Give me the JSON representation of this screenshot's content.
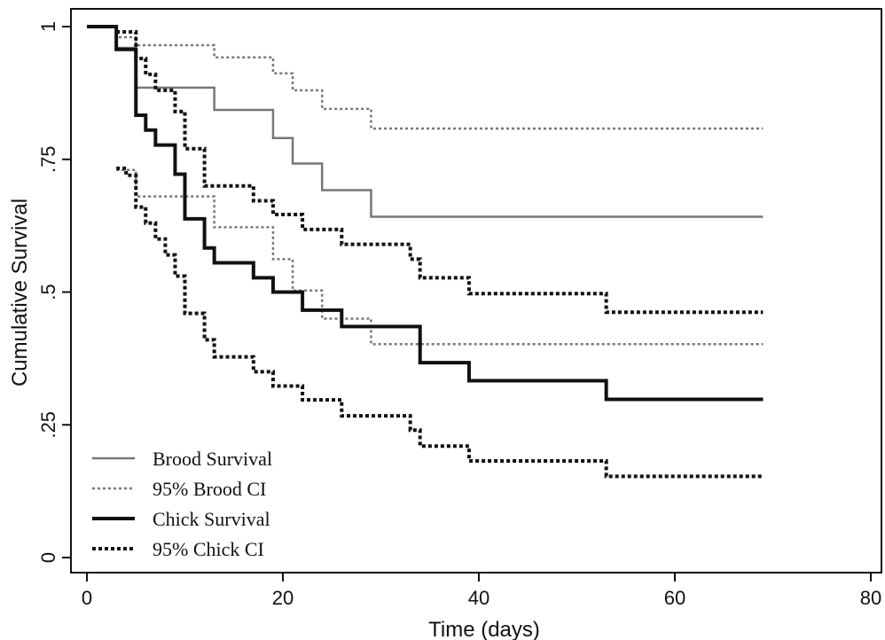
{
  "chart_data": {
    "type": "line",
    "title": "",
    "xlabel": "Time (days)",
    "ylabel": "Cumulative Survival",
    "xlim": [
      0,
      80
    ],
    "ylim": [
      0,
      1
    ],
    "xticks": [
      {
        "value": 0,
        "label": "0"
      },
      {
        "value": 20,
        "label": "20"
      },
      {
        "value": 40,
        "label": "40"
      },
      {
        "value": 60,
        "label": "60"
      },
      {
        "value": 80,
        "label": "80"
      }
    ],
    "yticks": [
      {
        "value": 0,
        "label": "0"
      },
      {
        "value": 0.25,
        "label": ".25"
      },
      {
        "value": 0.5,
        "label": ".5"
      },
      {
        "value": 0.75,
        "label": ".75"
      },
      {
        "value": 1,
        "label": "1"
      }
    ],
    "grid": false,
    "legend": "bottom-left",
    "series": [
      {
        "name": "Brood Survival",
        "style": "solid-thin",
        "color": "#777777",
        "x": [
          0,
          3,
          5,
          13,
          19,
          21,
          24,
          29,
          69
        ],
        "y": [
          1,
          0.96,
          0.885,
          0.843,
          0.79,
          0.742,
          0.692,
          0.642,
          0.642
        ]
      },
      {
        "name": "95% Brood CI",
        "style": "dotted-thin",
        "color": "#777777",
        "x": [
          0,
          3,
          5,
          13,
          19,
          21,
          24,
          29,
          69
        ],
        "y": [
          1,
          0.98,
          0.965,
          0.942,
          0.912,
          0.88,
          0.845,
          0.808,
          0.808
        ]
      },
      {
        "name": "95% Brood CI",
        "style": "dotted-thin",
        "color": "#777777",
        "x": [
          3,
          5,
          13,
          19,
          21,
          24,
          29,
          69
        ],
        "y": [
          0.73,
          0.68,
          0.622,
          0.562,
          0.503,
          0.45,
          0.402,
          0.402
        ]
      },
      {
        "name": "Chick Survival",
        "style": "solid-thick",
        "color": "#111111",
        "x": [
          0,
          3,
          5,
          6,
          7,
          9,
          10,
          12,
          13,
          17,
          19,
          22,
          26,
          34,
          39,
          53,
          69
        ],
        "y": [
          1,
          0.957,
          0.833,
          0.805,
          0.777,
          0.722,
          0.638,
          0.583,
          0.555,
          0.527,
          0.5,
          0.466,
          0.435,
          0.367,
          0.333,
          0.298,
          0.298
        ]
      },
      {
        "name": "95% Chick CI",
        "style": "dotted-thick",
        "color": "#111111",
        "x": [
          3,
          5,
          6,
          7,
          9,
          10,
          12,
          17,
          19,
          22,
          26,
          33,
          34,
          39,
          53,
          69
        ],
        "y": [
          0.99,
          0.94,
          0.91,
          0.88,
          0.84,
          0.77,
          0.7,
          0.672,
          0.646,
          0.618,
          0.59,
          0.562,
          0.527,
          0.497,
          0.462,
          0.462
        ]
      },
      {
        "name": "95% Chick CI",
        "style": "dotted-thick",
        "color": "#111111",
        "x": [
          3,
          4,
          5,
          6,
          7,
          8,
          9,
          10,
          12,
          13,
          17,
          19,
          22,
          26,
          33,
          34,
          39,
          53,
          69
        ],
        "y": [
          0.733,
          0.72,
          0.66,
          0.63,
          0.6,
          0.57,
          0.53,
          0.46,
          0.41,
          0.378,
          0.35,
          0.323,
          0.297,
          0.267,
          0.24,
          0.21,
          0.182,
          0.153,
          0.153
        ]
      }
    ],
    "legend_entries": [
      {
        "label": "Brood Survival",
        "style": "solid-thin",
        "color": "#777777"
      },
      {
        "label": "95% Brood CI",
        "style": "dotted-thin",
        "color": "#777777"
      },
      {
        "label": "Chick Survival",
        "style": "solid-thick",
        "color": "#111111"
      },
      {
        "label": "95% Chick CI",
        "style": "dotted-thick",
        "color": "#111111"
      }
    ]
  }
}
